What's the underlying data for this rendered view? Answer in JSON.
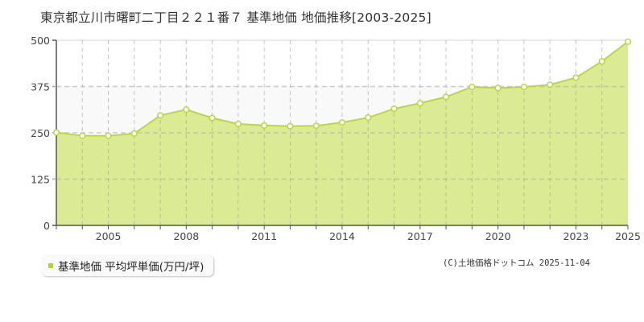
{
  "title": "東京都立川市曙町二丁目２２１番７ 基準地価 地価推移[2003-2025]",
  "legend": {
    "label": "基準地価 平均坪単価(万円/坪)",
    "color": "#b5d334"
  },
  "copyright": "(C)土地価格ドットコム 2025-11-04",
  "colors": {
    "fill": "#dbeb94",
    "line": "#b9d83c",
    "band": "#f9f9f9"
  },
  "chart_data": {
    "type": "area",
    "title": "東京都立川市曙町二丁目２２１番７ 基準地価 地価推移[2003-2025]",
    "xlabel": "",
    "ylabel": "",
    "x": [
      2003,
      2004,
      2005,
      2006,
      2007,
      2008,
      2009,
      2010,
      2011,
      2012,
      2013,
      2014,
      2015,
      2016,
      2017,
      2018,
      2019,
      2020,
      2021,
      2022,
      2023,
      2024,
      2025
    ],
    "series": [
      {
        "name": "基準地価 平均坪単価(万円/坪)",
        "values": [
          251,
          242,
          242,
          248,
          297,
          313,
          290,
          274,
          270,
          268,
          269,
          278,
          291,
          315,
          330,
          347,
          374,
          371,
          374,
          380,
          399,
          443,
          496
        ]
      }
    ],
    "ylim": [
      0,
      500
    ],
    "yticks": [
      "0",
      "125",
      "250",
      "375",
      "500"
    ],
    "xtick_labels": [
      "2005",
      "2008",
      "2011",
      "2014",
      "2017",
      "2020",
      "2023",
      "2025"
    ],
    "xtick_years": [
      2005,
      2008,
      2011,
      2014,
      2017,
      2020,
      2023,
      2025
    ],
    "grid": true,
    "legend_position": "bottom-left"
  }
}
